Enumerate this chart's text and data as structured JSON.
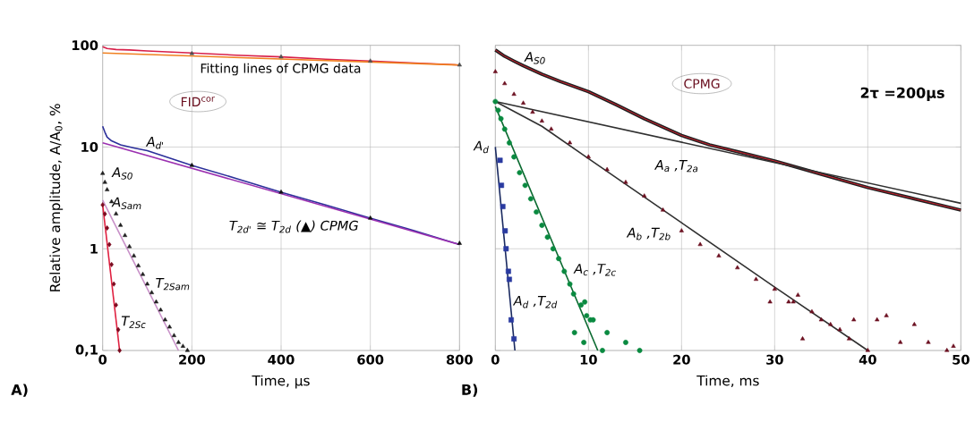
{
  "chart_data": [
    {
      "type": "line",
      "xlabel": "Time, μs",
      "ylabel": "Relative amplitude, A/A$_{0}$, %",
      "log": "y",
      "grid": true,
      "xlim": [
        0,
        800
      ],
      "xticks": [
        0,
        200,
        400,
        600,
        800
      ],
      "ylim": [
        0.1,
        100
      ],
      "yticks": [
        {
          "value": 0.1,
          "label": "0,1"
        },
        1,
        10,
        100
      ],
      "series": [
        {
          "color": "#d8204a",
          "x": [
            0,
            10,
            30,
            60,
            100,
            200,
            300,
            400,
            500,
            600,
            700,
            800
          ],
          "values": [
            97,
            93,
            91,
            90,
            88,
            84,
            80,
            77,
            73,
            70,
            67,
            64
          ]
        },
        {
          "color": "#f08020",
          "x": [
            0,
            800
          ],
          "values": [
            84,
            64
          ]
        },
        {
          "type": "scatter",
          "marker": "triangle",
          "color": "#505050",
          "x": [
            200,
            400,
            600,
            800
          ],
          "values": [
            83,
            77,
            70,
            64
          ]
        },
        {
          "color": "#2b2f9a",
          "x": [
            0,
            5,
            10,
            20,
            40,
            70,
            100,
            150,
            200,
            300,
            400,
            500,
            600,
            700,
            800
          ],
          "values": [
            16,
            14,
            12.5,
            11.5,
            10.5,
            9.8,
            9.2,
            7.8,
            6.6,
            4.9,
            3.6,
            2.7,
            2,
            1.5,
            1.1
          ]
        },
        {
          "color": "#9b30b0",
          "x": [
            0,
            800
          ],
          "values": [
            11,
            1.1
          ]
        },
        {
          "type": "scatter",
          "marker": "triangle",
          "color": "#101010",
          "x": [
            200,
            400,
            600,
            800
          ],
          "values": [
            6.6,
            3.6,
            2,
            1.13
          ]
        },
        {
          "type": "scatter",
          "marker": "triangle",
          "color": "#202020",
          "x": [
            0,
            5,
            10,
            20,
            30,
            40,
            50,
            60,
            70,
            80,
            90,
            100,
            110,
            120,
            130,
            140,
            150,
            160,
            170,
            180,
            190
          ],
          "values": [
            5.5,
            4.5,
            3.8,
            2.9,
            2.2,
            1.7,
            1.35,
            1.05,
            0.85,
            0.68,
            0.56,
            0.45,
            0.37,
            0.3,
            0.25,
            0.2,
            0.17,
            0.14,
            0.12,
            0.11,
            0.1
          ]
        },
        {
          "color": "#c890c8",
          "x": [
            0,
            170
          ],
          "values": [
            3,
            0.1
          ]
        },
        {
          "type": "scatter",
          "marker": "diamond",
          "color": "#7a0a1e",
          "x": [
            0,
            5,
            10,
            15,
            20,
            25,
            30,
            35,
            38
          ],
          "values": [
            2.7,
            2.2,
            1.6,
            1.1,
            0.7,
            0.45,
            0.28,
            0.16,
            0.1
          ]
        },
        {
          "color": "#e02040",
          "x": [
            0,
            38
          ],
          "values": [
            2.7,
            0.1
          ]
        }
      ],
      "annotations": [
        "FID$^{cor}$",
        "Fitting lines of CPMG data",
        "A$_{d'}$",
        "A$_{S0}$",
        "A$_{Sam}$",
        "T$_{2Sam}$",
        "T$_{2Sc}$",
        "T$_{2d'}$ ≅ T$_{2d}$ (▲) CPMG",
        "A)"
      ]
    },
    {
      "type": "line",
      "xlabel": "Time, ms",
      "log": "y",
      "grid": true,
      "tick_labels": "x",
      "xlim": [
        0,
        50
      ],
      "xticks": [
        0,
        10,
        20,
        30,
        40,
        50
      ],
      "ylim": [
        0.1,
        100
      ],
      "yticks": [
        0.1,
        1,
        10,
        100
      ],
      "series": [
        {
          "color": "#202020",
          "x": [
            0,
            1,
            2,
            3,
            5,
            7,
            10,
            13,
            16,
            20,
            23,
            26,
            30,
            35,
            40,
            45,
            50
          ],
          "values": [
            90,
            78,
            70,
            63,
            52,
            44,
            35,
            26,
            19,
            13,
            10.5,
            9,
            7.3,
            5.4,
            4,
            3.1,
            2.4
          ]
        },
        {
          "color": "#e02030",
          "x": [
            0,
            1,
            2,
            3,
            5,
            7,
            10,
            13,
            16,
            20,
            23,
            26,
            30,
            35,
            40,
            45,
            50
          ],
          "values": [
            90,
            78,
            70,
            63,
            52,
            44,
            35,
            26,
            19,
            13,
            10.5,
            9,
            7.3,
            5.4,
            4,
            3.1,
            2.4
          ]
        },
        {
          "color": "#303030",
          "x": [
            0,
            50
          ],
          "values": [
            28,
            2.8
          ]
        },
        {
          "color": "#303030",
          "x": [
            0,
            5,
            10,
            20,
            30,
            40
          ],
          "values": [
            28,
            16,
            7.7,
            1.8,
            0.42,
            0.1
          ]
        },
        {
          "type": "scatter",
          "marker": "triangle",
          "color": "#6b1020",
          "x": [
            0,
            1,
            2,
            3,
            4,
            5,
            6,
            8,
            10,
            12,
            14,
            16,
            18,
            20,
            22,
            24,
            26,
            28,
            30,
            32,
            34,
            36,
            38,
            40,
            29.5,
            31.5,
            33,
            35,
            37,
            41,
            42,
            43.5,
            45,
            46.5,
            48.5,
            49.2,
            32.5,
            38.5
          ],
          "values": [
            55,
            42,
            33,
            27,
            22,
            18,
            15,
            11,
            8,
            6,
            4.5,
            3.3,
            2.4,
            1.5,
            1.1,
            0.85,
            0.65,
            0.5,
            0.4,
            0.3,
            0.24,
            0.18,
            0.13,
            0.1,
            0.3,
            0.3,
            0.13,
            0.2,
            0.16,
            0.2,
            0.22,
            0.12,
            0.18,
            0.12,
            0.1,
            0.11,
            0.35,
            0.2
          ]
        },
        {
          "type": "scatter",
          "marker": "circle",
          "color": "#0a8a40",
          "x": [
            0,
            0.3,
            0.6,
            1,
            1.5,
            2,
            2.6,
            3.2,
            3.8,
            4.4,
            5,
            5.6,
            6.2,
            6.8,
            7.4,
            8,
            8.4,
            9.2,
            9.6,
            9.8,
            10.2,
            10.5,
            11.5,
            12,
            14,
            15.5,
            8.5,
            9.5
          ],
          "values": [
            28,
            23,
            19,
            15,
            11,
            8,
            5.6,
            4.2,
            3.1,
            2.3,
            1.7,
            1.3,
            1,
            0.8,
            0.6,
            0.45,
            0.36,
            0.28,
            0.3,
            0.22,
            0.2,
            0.2,
            0.1,
            0.15,
            0.12,
            0.1,
            0.15,
            0.12
          ]
        },
        {
          "color": "#0a6a30",
          "x": [
            0,
            11
          ],
          "values": [
            25,
            0.1
          ]
        },
        {
          "type": "scatter",
          "marker": "square",
          "color": "#2a3aa0",
          "x": [
            0.5,
            0.65,
            0.8,
            1.05,
            1.15,
            1.4,
            1.5,
            1.7,
            2
          ],
          "values": [
            7.4,
            4.2,
            2.6,
            1.5,
            1,
            0.6,
            0.5,
            0.2,
            0.13
          ]
        },
        {
          "color": "#1a2a60",
          "x": [
            0,
            2.1
          ],
          "values": [
            10,
            0.1
          ]
        }
      ],
      "annotations": [
        "A$_{S0}$",
        "CPMG",
        "A$_{a}$ ,T$_{2a}$",
        "A$_{b}$ ,T$_{2b}$",
        "A$_{c}$ ,T$_{2c}$",
        "A$_{d}$ ,T$_{2d}$",
        "A$_{d}$",
        "B)",
        "2τ =200μs"
      ]
    }
  ]
}
